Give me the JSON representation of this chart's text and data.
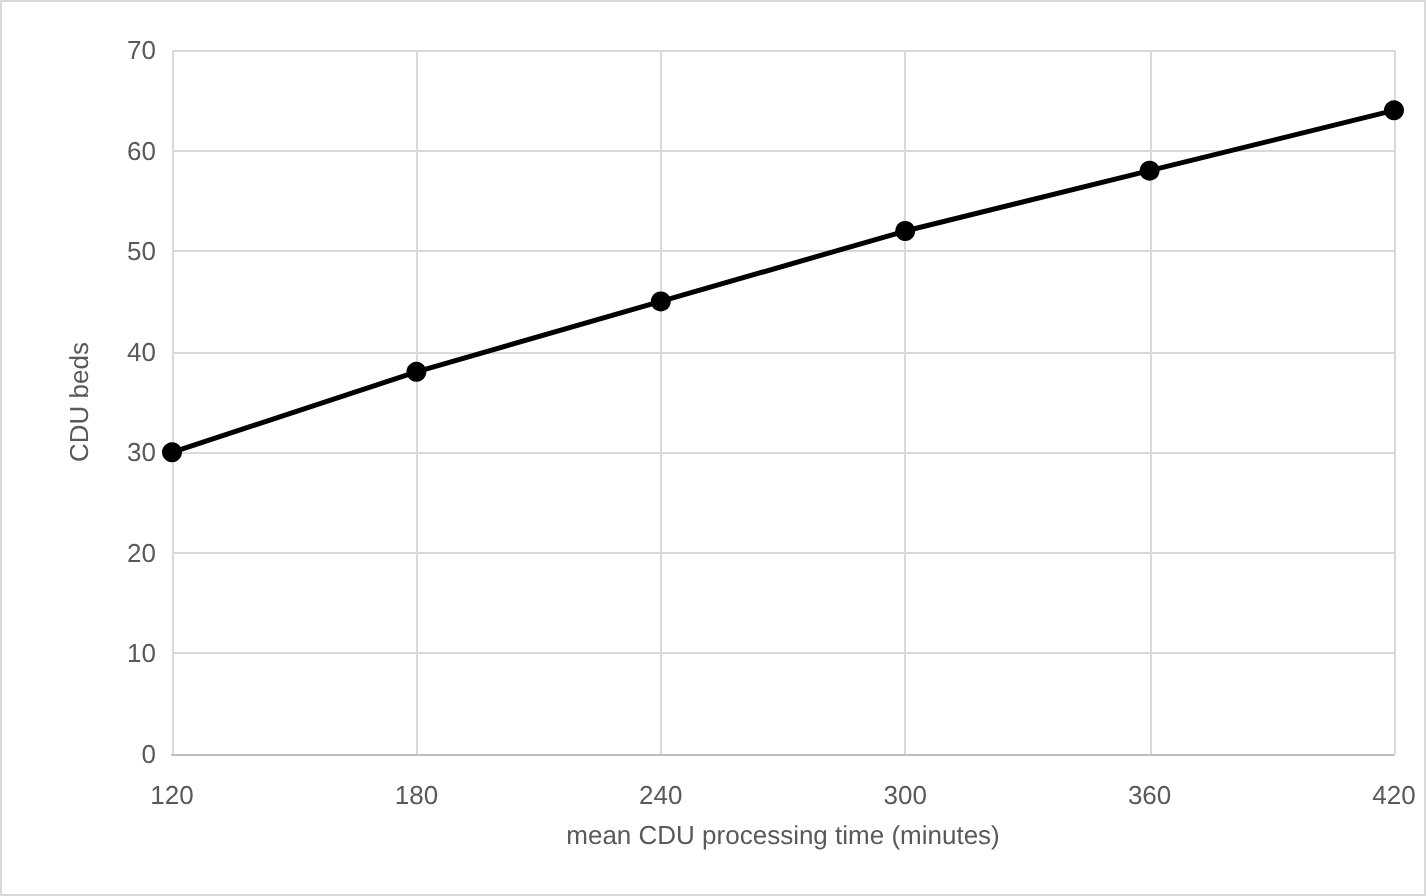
{
  "chart_data": {
    "type": "line",
    "xlabel": "mean CDU processing time (minutes)",
    "ylabel": "CDU beds",
    "x": [
      120,
      180,
      240,
      300,
      360,
      420
    ],
    "series": [
      {
        "color": "#000000",
        "values": [
          30,
          38,
          45,
          52,
          58,
          64
        ]
      }
    ],
    "xlim": [
      120,
      420
    ],
    "xticks": [
      120,
      180,
      240,
      300,
      360,
      420
    ],
    "ylim": [
      0,
      70
    ],
    "yticks": [
      0,
      10,
      20,
      30,
      40,
      50,
      60,
      70
    ],
    "grid": true,
    "marker": "circle",
    "line_style": "solid"
  }
}
